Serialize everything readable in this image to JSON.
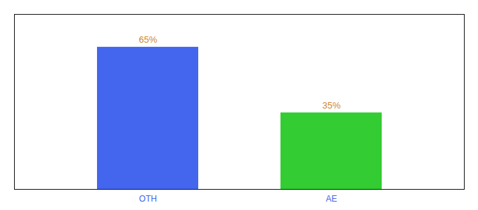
{
  "chart_data": {
    "type": "bar",
    "categories": [
      "OTH",
      "AE"
    ],
    "values": [
      65,
      35
    ],
    "value_labels": [
      "65%",
      "35%"
    ],
    "colors": [
      "#4466ee",
      "#33cc33"
    ],
    "ylim": [
      0,
      80
    ],
    "data_labels": true,
    "tick_labels": "x",
    "grid": false
  }
}
